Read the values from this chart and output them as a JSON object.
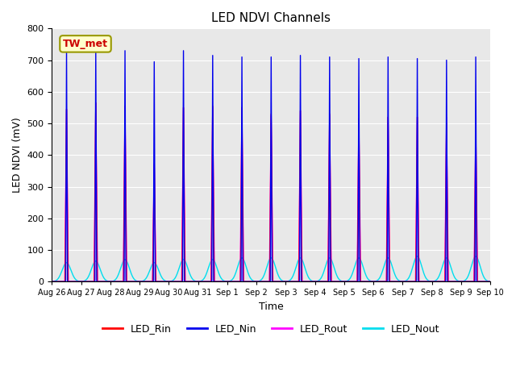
{
  "title": "LED NDVI Channels",
  "xlabel": "Time",
  "ylabel": "LED NDVI (mV)",
  "ylim": [
    0,
    800
  ],
  "annotation_text": "TW_met",
  "annotation_bbox_fc": "#ffffcc",
  "annotation_bbox_ec": "#999900",
  "annotation_color": "#cc0000",
  "bg_color": "#e8e8e8",
  "grid_color": "white",
  "channels": {
    "LED_Rin": {
      "color": "#ff0000",
      "linewidth": 1.0
    },
    "LED_Nin": {
      "color": "#0000ee",
      "linewidth": 1.0
    },
    "LED_Rout": {
      "color": "#ff00ff",
      "linewidth": 1.0
    },
    "LED_Nout": {
      "color": "#00ddee",
      "linewidth": 1.0
    }
  },
  "spike_peaks_rin": [
    545,
    565,
    555,
    370,
    550,
    555,
    550,
    530,
    540,
    530,
    515,
    520,
    520,
    500,
    490
  ],
  "spike_peaks_nin": [
    730,
    730,
    730,
    695,
    730,
    715,
    710,
    710,
    715,
    710,
    705,
    710,
    705,
    700,
    710
  ],
  "spike_peaks_rout": [
    545,
    565,
    555,
    375,
    550,
    550,
    550,
    525,
    540,
    525,
    515,
    520,
    520,
    520,
    490
  ],
  "spike_peaks_nout": [
    60,
    65,
    70,
    60,
    70,
    70,
    75,
    75,
    75,
    75,
    75,
    75,
    80,
    75,
    80
  ],
  "total_days": 15,
  "tick_dates": [
    "Aug 26",
    "Aug 27",
    "Aug 28",
    "Aug 29",
    "Aug 30",
    "Aug 31",
    "Sep 1",
    "Sep 2",
    "Sep 3",
    "Sep 4",
    "Sep 5",
    "Sep 6",
    "Sep 7",
    "Sep 8",
    "Sep 9",
    "Sep 10"
  ],
  "figsize": [
    6.4,
    4.8
  ],
  "dpi": 100
}
